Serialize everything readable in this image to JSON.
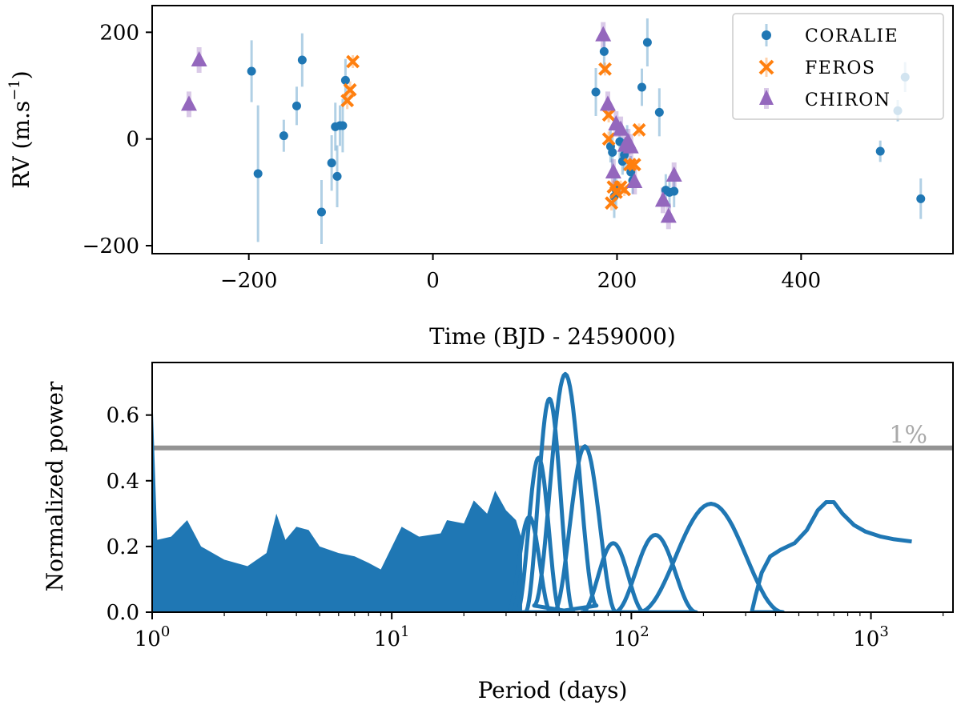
{
  "chart_data": [
    {
      "type": "scatter",
      "xlabel": "Time (BJD - 2459000)",
      "ylabel": "RV (m.s",
      "ylabel_sup": "−1",
      "ylabel_close": ")",
      "xlim": [
        -305,
        565
      ],
      "ylim": [
        -215,
        250
      ],
      "xticks": [
        -200,
        0,
        200,
        400
      ],
      "xtick_labels": [
        "−200",
        "0",
        "200",
        "400"
      ],
      "yticks": [
        -200,
        0,
        200
      ],
      "ytick_labels": [
        "−200",
        "0",
        "200"
      ],
      "legend_position": "top-right",
      "colors": {
        "CORALIE": "#1f77b4",
        "FEROS": "#ff7f0e",
        "CHIRON": "#9467bd"
      },
      "series": [
        {
          "name": "CORALIE",
          "marker": "circle",
          "points": [
            [
              -197,
              127,
              58
            ],
            [
              -190,
              -65,
              128
            ],
            [
              -162,
              6,
              30
            ],
            [
              -148,
              62,
              36
            ],
            [
              -142,
              148,
              50
            ],
            [
              -121,
              -137,
              60
            ],
            [
              -110,
              -45,
              52
            ],
            [
              -106,
              23,
              45
            ],
            [
              -104,
              -70,
              58
            ],
            [
              -101,
              25,
              38
            ],
            [
              -98,
              25,
              50
            ],
            [
              -95,
              110,
              40
            ],
            [
              177,
              88,
              45
            ],
            [
              186,
              164,
              40
            ],
            [
              193,
              -14,
              30
            ],
            [
              195,
              -25,
              30
            ],
            [
              197,
              -108,
              40
            ],
            [
              199,
              -95,
              30
            ],
            [
              203,
              -5,
              32
            ],
            [
              206,
              -42,
              25
            ],
            [
              208,
              -30,
              30
            ],
            [
              211,
              -12,
              38
            ],
            [
              215,
              -62,
              30
            ],
            [
              217,
              -78,
              25
            ],
            [
              227,
              97,
              35
            ],
            [
              233,
              181,
              45
            ],
            [
              246,
              50,
              45
            ],
            [
              253,
              -96,
              30
            ],
            [
              257,
              -100,
              30
            ],
            [
              262,
              -98,
              30
            ],
            [
              486,
              -23,
              20
            ],
            [
              505,
              53,
              20
            ],
            [
              513,
              116,
              28
            ],
            [
              530,
              -112,
              38
            ]
          ]
        },
        {
          "name": "FEROS",
          "marker": "x",
          "points": [
            [
              -93,
              72,
              16
            ],
            [
              -90,
              92,
              16
            ],
            [
              -87,
              145,
              12
            ],
            [
              187,
              131,
              12
            ],
            [
              191,
              0,
              14
            ],
            [
              191,
              45,
              14
            ],
            [
              194,
              -120,
              14
            ],
            [
              196,
              -90,
              12
            ],
            [
              199,
              -100,
              14
            ],
            [
              204,
              -90,
              12
            ],
            [
              208,
              -95,
              12
            ],
            [
              214,
              -48,
              12
            ],
            [
              219,
              -48,
              12
            ],
            [
              224,
              17,
              12
            ]
          ]
        },
        {
          "name": "CHIRON",
          "marker": "triangle",
          "points": [
            [
              -265,
              65,
              24
            ],
            [
              -254,
              148,
              24
            ],
            [
              185,
              195,
              24
            ],
            [
              190,
              65,
              24
            ],
            [
              196,
              -62,
              24
            ],
            [
              199,
              28,
              24
            ],
            [
              204,
              18,
              24
            ],
            [
              209,
              -12,
              24
            ],
            [
              212,
              -5,
              24
            ],
            [
              215,
              -15,
              24
            ],
            [
              219,
              -80,
              24
            ],
            [
              250,
              -115,
              24
            ],
            [
              256,
              -145,
              24
            ],
            [
              262,
              -68,
              24
            ]
          ]
        }
      ]
    },
    {
      "type": "line",
      "title": "",
      "xlabel": "Period (days)",
      "ylabel": "Normalized power",
      "xscale": "log",
      "xlim": [
        1,
        2200
      ],
      "ylim": [
        0,
        0.76
      ],
      "xticks": [
        1,
        10,
        100,
        1000
      ],
      "xtick_labels": [
        {
          "base": "10",
          "exp": "0"
        },
        {
          "base": "10",
          "exp": "1"
        },
        {
          "base": "10",
          "exp": "2"
        },
        {
          "base": "10",
          "exp": "3"
        }
      ],
      "yticks": [
        0.0,
        0.2,
        0.4,
        0.6
      ],
      "ytick_labels": [
        "0.0",
        "0.2",
        "0.4",
        "0.6"
      ],
      "threshold_value": 0.5,
      "threshold_label": "1%",
      "color": "#1f77b4",
      "envelope": [
        [
          1.0,
          0.68
        ],
        [
          1.05,
          0.22
        ],
        [
          1.2,
          0.23
        ],
        [
          1.4,
          0.28
        ],
        [
          1.6,
          0.2
        ],
        [
          2.0,
          0.16
        ],
        [
          2.5,
          0.14
        ],
        [
          3.0,
          0.18
        ],
        [
          3.3,
          0.3
        ],
        [
          3.6,
          0.22
        ],
        [
          4.0,
          0.26
        ],
        [
          4.5,
          0.25
        ],
        [
          5.0,
          0.2
        ],
        [
          6.0,
          0.18
        ],
        [
          7.0,
          0.17
        ],
        [
          8.0,
          0.15
        ],
        [
          9.0,
          0.13
        ],
        [
          11,
          0.26
        ],
        [
          13,
          0.23
        ],
        [
          16,
          0.24
        ],
        [
          17,
          0.28
        ],
        [
          20,
          0.27
        ],
        [
          22,
          0.34
        ],
        [
          25,
          0.3
        ],
        [
          27,
          0.37
        ],
        [
          30,
          0.31
        ],
        [
          33,
          0.28
        ],
        [
          35,
          0.22
        ]
      ],
      "peaks": [
        [
          37.5,
          0.29,
          0.0,
          0.09
        ],
        [
          41,
          0.47,
          0.0,
          0.09
        ],
        [
          45.5,
          0.65,
          0.0,
          0.1
        ],
        [
          53,
          0.725,
          0.02,
          0.13
        ],
        [
          64,
          0.505,
          0.0,
          0.13
        ],
        [
          84,
          0.21,
          0.0,
          0.13
        ],
        [
          126,
          0.235,
          0.0,
          0.17
        ],
        [
          215,
          0.33,
          0.0,
          0.3
        ]
      ],
      "tail": [
        [
          318,
          0.0
        ],
        [
          330,
          0.05
        ],
        [
          350,
          0.12
        ],
        [
          380,
          0.17
        ],
        [
          420,
          0.19
        ],
        [
          480,
          0.21
        ],
        [
          540,
          0.25
        ],
        [
          600,
          0.31
        ],
        [
          650,
          0.335
        ],
        [
          700,
          0.335
        ],
        [
          760,
          0.3
        ],
        [
          850,
          0.265
        ],
        [
          950,
          0.245
        ],
        [
          1100,
          0.23
        ],
        [
          1250,
          0.222
        ],
        [
          1480,
          0.215
        ]
      ]
    }
  ]
}
